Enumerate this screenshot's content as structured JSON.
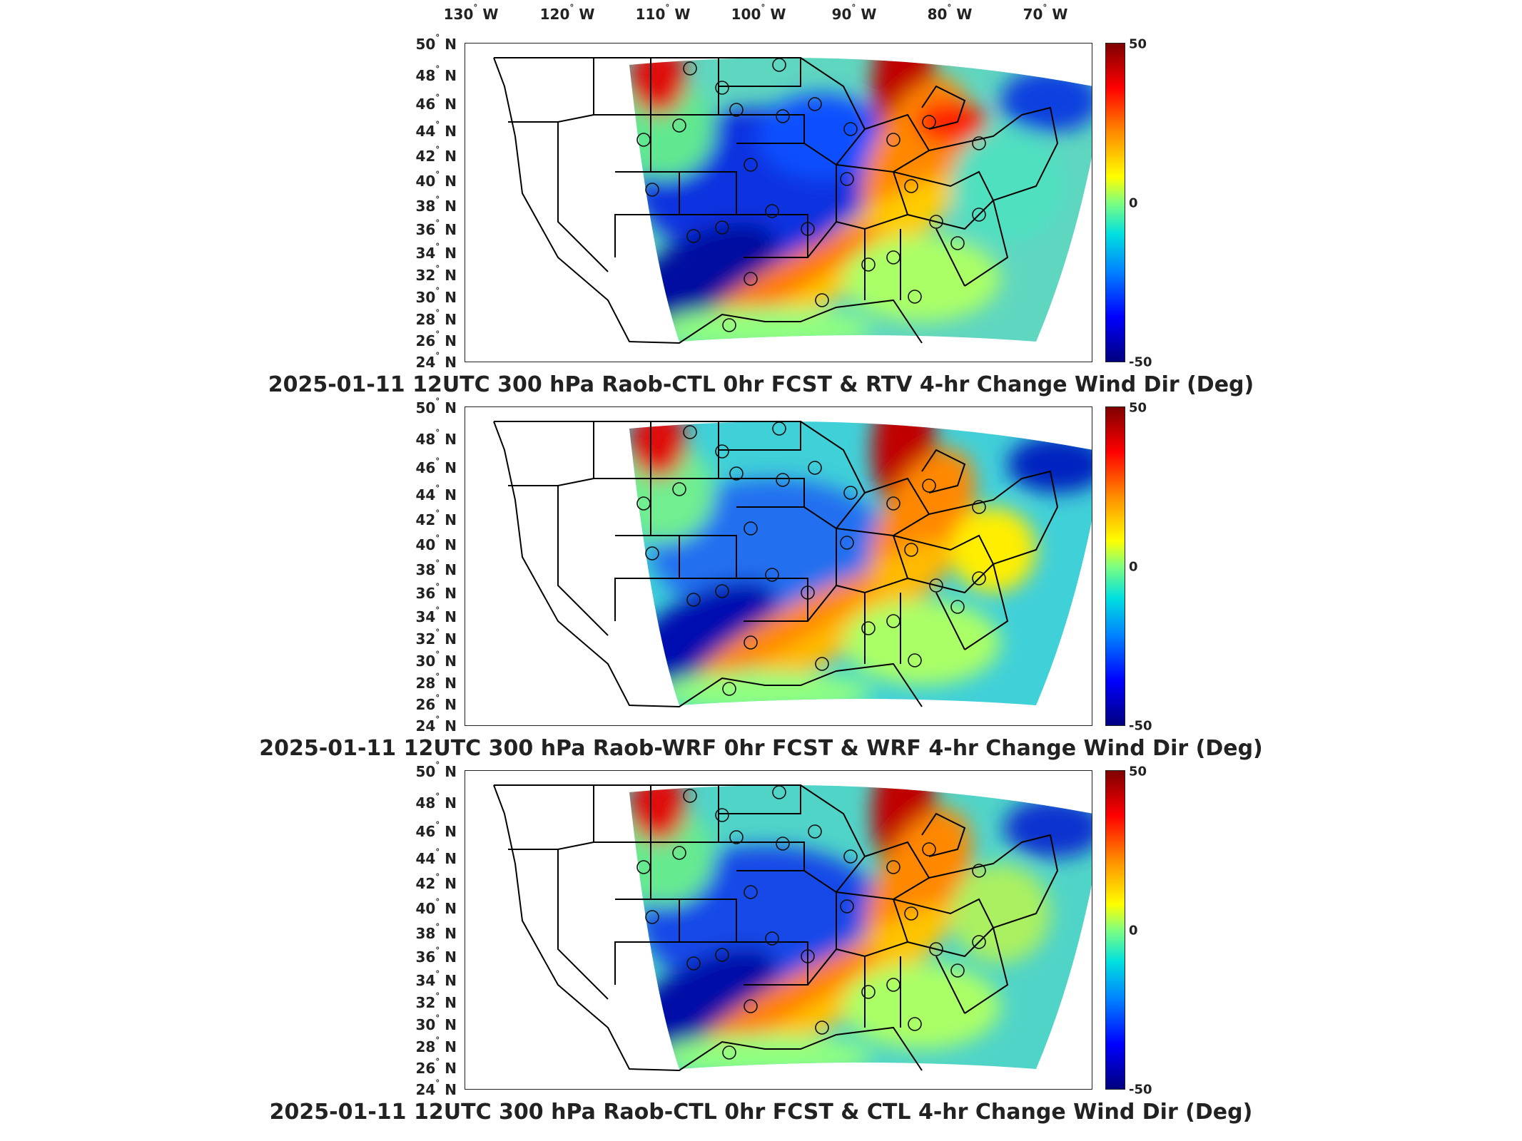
{
  "longitude_labels": [
    {
      "deg": "130",
      "hem": "W"
    },
    {
      "deg": "120",
      "hem": "W"
    },
    {
      "deg": "110",
      "hem": "W"
    },
    {
      "deg": "100",
      "hem": "W"
    },
    {
      "deg": "90",
      "hem": "W"
    },
    {
      "deg": "80",
      "hem": "W"
    },
    {
      "deg": "70",
      "hem": "W"
    }
  ],
  "latitude_labels": [
    {
      "deg": "50",
      "hem": "N"
    },
    {
      "deg": "48",
      "hem": "N"
    },
    {
      "deg": "46",
      "hem": "N"
    },
    {
      "deg": "44",
      "hem": "N"
    },
    {
      "deg": "42",
      "hem": "N"
    },
    {
      "deg": "40",
      "hem": "N"
    },
    {
      "deg": "38",
      "hem": "N"
    },
    {
      "deg": "36",
      "hem": "N"
    },
    {
      "deg": "34",
      "hem": "N"
    },
    {
      "deg": "32",
      "hem": "N"
    },
    {
      "deg": "30",
      "hem": "N"
    },
    {
      "deg": "28",
      "hem": "N"
    },
    {
      "deg": "26",
      "hem": "N"
    },
    {
      "deg": "24",
      "hem": "N"
    }
  ],
  "colorbar": {
    "max": "50",
    "mid": "0",
    "min": "-50",
    "colors": [
      "#7f0000",
      "#ff0000",
      "#ff8c00",
      "#ffff00",
      "#7fff7f",
      "#00e0e0",
      "#0080ff",
      "#0000ff",
      "#00007f"
    ]
  },
  "panels": [
    {
      "title": "2025-01-11 12UTC 300 hPa Raob-CTL 0hr FCST & RTV 4-hr Change Wind Dir (Deg)"
    },
    {
      "title": "2025-01-11 12UTC 300 hPa Raob-WRF 0hr FCST & WRF 4-hr Change Wind Dir (Deg)"
    },
    {
      "title": "2025-01-11 12UTC 300 hPa Raob-CTL 0hr FCST & CTL 4-hr Change Wind Dir (Deg)"
    }
  ]
}
